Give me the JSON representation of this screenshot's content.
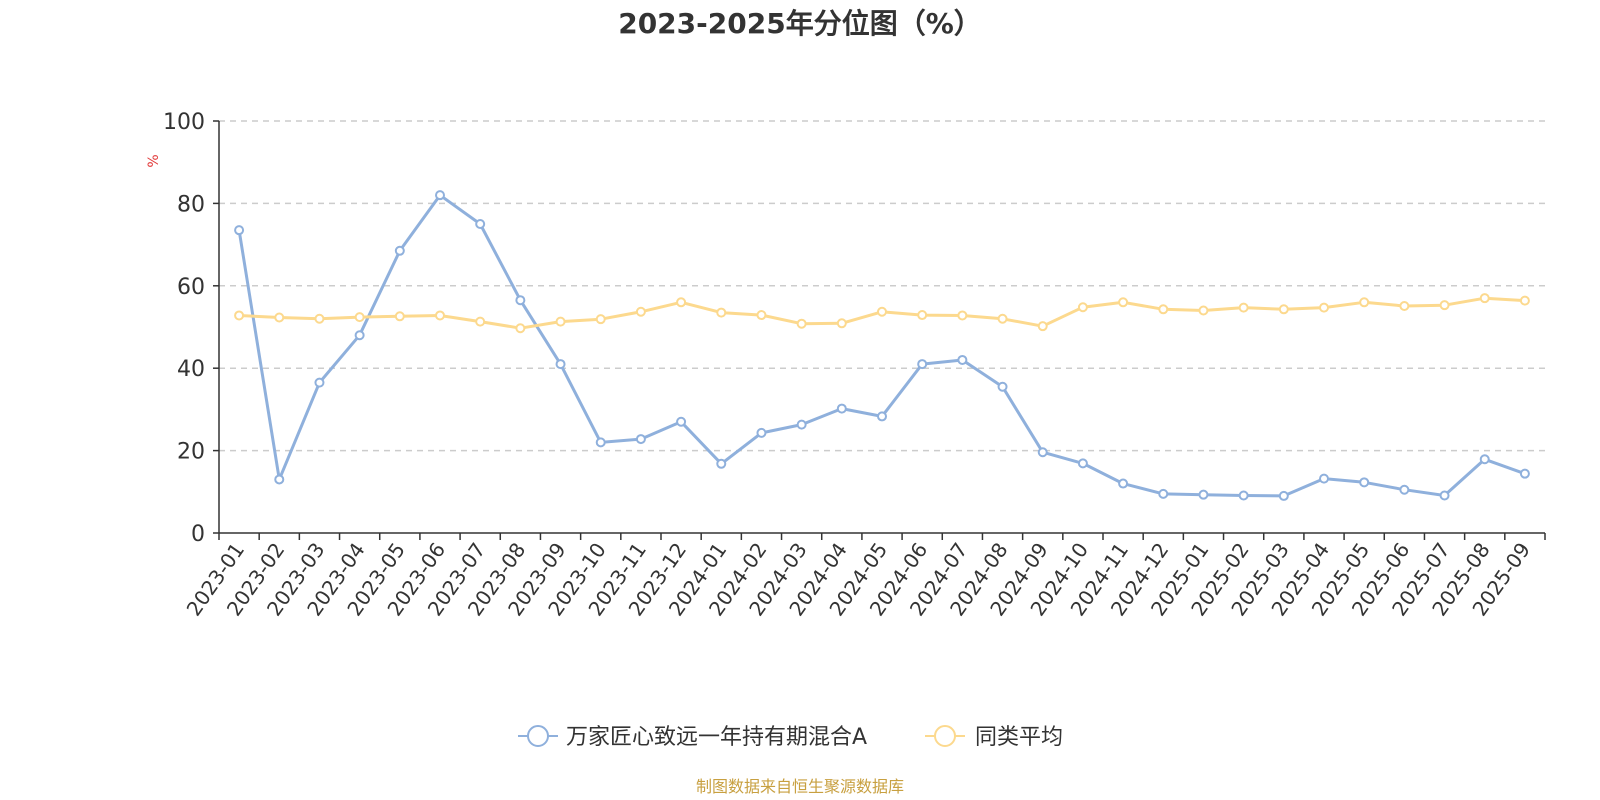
{
  "chart_data": {
    "type": "line",
    "title": "2023-2025年分位图（%）",
    "ylabel": "%",
    "ylim": [
      0,
      100
    ],
    "yticks": [
      0,
      20,
      40,
      60,
      80,
      100
    ],
    "grid": true,
    "legend_position": "bottom-center",
    "categories": [
      "2023-01",
      "2023-02",
      "2023-03",
      "2023-04",
      "2023-05",
      "2023-06",
      "2023-07",
      "2023-08",
      "2023-09",
      "2023-10",
      "2023-11",
      "2023-12",
      "2024-01",
      "2024-02",
      "2024-03",
      "2024-04",
      "2024-05",
      "2024-06",
      "2024-07",
      "2024-08",
      "2024-09",
      "2024-10",
      "2024-11",
      "2024-12",
      "2025-01",
      "2025-02",
      "2025-03",
      "2025-04",
      "2025-05",
      "2025-06",
      "2025-07",
      "2025-08",
      "2025-09"
    ],
    "series": [
      {
        "name": "万家匠心致远一年持有期混合A",
        "color": "#8fb0dc",
        "values": [
          73.5,
          13,
          36.5,
          48,
          68.5,
          82,
          75,
          56.5,
          41,
          22,
          22.8,
          27,
          16.8,
          24.3,
          26.3,
          30.2,
          28.3,
          41,
          42,
          35.5,
          19.6,
          16.9,
          12,
          9.5,
          9.3,
          9.1,
          9,
          13.2,
          12.3,
          10.5,
          9.1,
          17.9,
          14.4
        ]
      },
      {
        "name": "同类平均",
        "color": "#fcd98e",
        "values": [
          52.8,
          52.3,
          52,
          52.4,
          52.6,
          52.8,
          51.3,
          49.7,
          51.3,
          51.9,
          53.7,
          56,
          53.5,
          52.9,
          50.8,
          50.9,
          53.7,
          52.9,
          52.8,
          52,
          50.2,
          54.8,
          56,
          54.3,
          54,
          54.7,
          54.3,
          54.7,
          56,
          55.1,
          55.3,
          57,
          56.4
        ]
      }
    ]
  },
  "source_note": "制图数据来自恒生聚源数据库",
  "colors": {
    "unit_label": "#e23b3b",
    "source_note": "#c8a040",
    "axis": "#333333",
    "grid": "#cccccc"
  }
}
